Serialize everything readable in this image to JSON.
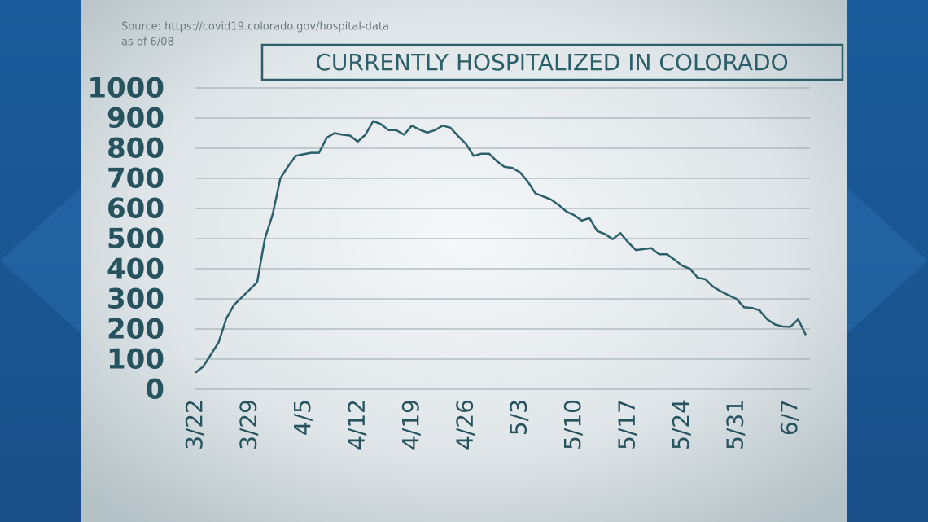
{
  "chart_data": {
    "type": "line",
    "title": "CURRENTLY HOSPITALIZED IN COLORADO",
    "source": "Source: https://covid19.colorado.gov/hospital-data",
    "note": "as of 6/08",
    "categories": [
      "3/22",
      null,
      null,
      null,
      null,
      null,
      null,
      "3/29",
      null,
      null,
      null,
      null,
      null,
      null,
      "4/5",
      null,
      null,
      null,
      null,
      null,
      null,
      "4/12",
      null,
      null,
      null,
      null,
      null,
      null,
      "4/19",
      null,
      null,
      null,
      null,
      null,
      null,
      "4/26",
      null,
      null,
      null,
      null,
      null,
      null,
      "5/3",
      null,
      null,
      null,
      null,
      null,
      null,
      "5/10",
      null,
      null,
      null,
      null,
      null,
      null,
      "5/17",
      null,
      null,
      null,
      null,
      null,
      null,
      "5/24",
      null,
      null,
      null,
      null,
      null,
      null,
      "5/31",
      null,
      null,
      null,
      null,
      null,
      null,
      "6/7",
      null,
      null
    ],
    "values": [
      55,
      75,
      115,
      155,
      235,
      280,
      305,
      330,
      355,
      500,
      580,
      700,
      740,
      775,
      780,
      785,
      785,
      835,
      850,
      845,
      842,
      822,
      845,
      890,
      880,
      860,
      860,
      845,
      875,
      862,
      852,
      860,
      875,
      868,
      840,
      815,
      775,
      782,
      782,
      757,
      738,
      735,
      720,
      690,
      650,
      640,
      630,
      612,
      590,
      578,
      560,
      568,
      525,
      515,
      498,
      518,
      488,
      462,
      465,
      468,
      448,
      448,
      430,
      410,
      400,
      370,
      365,
      340,
      325,
      312,
      300,
      272,
      270,
      262,
      232,
      215,
      208,
      207,
      232,
      180
    ],
    "color": "#2b5f69",
    "ylim": [
      0,
      1000
    ],
    "yticks": [
      0,
      100,
      200,
      300,
      400,
      500,
      600,
      700,
      800,
      900,
      1000
    ],
    "grid": true
  }
}
